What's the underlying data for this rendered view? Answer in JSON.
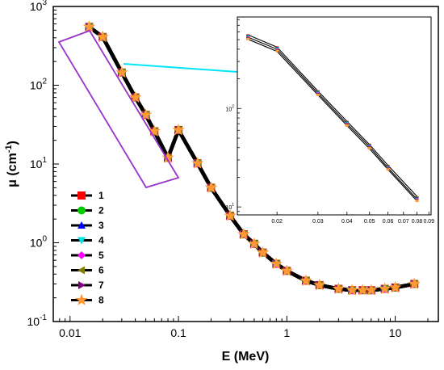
{
  "chart_data": [
    {
      "type": "line",
      "xlabel": "E (MeV)",
      "ylabel_prefix": "μ (cm",
      "ylabel_sup": "-1",
      "ylabel_suffix": ")",
      "x_scale": "log",
      "y_scale": "log",
      "xlim": [
        0.007,
        25
      ],
      "ylim": [
        0.1,
        1000
      ],
      "x_ticks": [
        0.01,
        0.1,
        1,
        10
      ],
      "x_tick_labels": [
        "0.01",
        "0.1",
        "1",
        "10"
      ],
      "y_ticks": [
        0.1,
        1,
        10,
        100,
        1000
      ],
      "y_tick_base": "10",
      "y_tick_exponents": [
        "-1",
        "0",
        "1",
        "2",
        "3"
      ],
      "x": [
        0.015,
        0.02,
        0.03,
        0.04,
        0.05,
        0.06,
        0.08,
        0.1,
        0.15,
        0.2,
        0.3,
        0.4,
        0.5,
        0.6,
        0.8,
        1.0,
        1.5,
        2.0,
        3.0,
        4.0,
        5.0,
        6.0,
        8.0,
        10.0,
        15.0
      ],
      "series": [
        {
          "name": "1",
          "marker": "square",
          "color": "#ff0000",
          "values": [
            550,
            410,
            145,
            70,
            42,
            26,
            12,
            27,
            10.2,
            5.0,
            2.2,
            1.28,
            0.97,
            0.75,
            0.54,
            0.44,
            0.33,
            0.29,
            0.26,
            0.25,
            0.25,
            0.25,
            0.26,
            0.27,
            0.3
          ]
        },
        {
          "name": "2",
          "marker": "circle",
          "color": "#00cc00",
          "values": [
            550,
            410,
            145,
            70,
            42,
            26,
            12,
            27,
            10.2,
            5.0,
            2.2,
            1.28,
            0.97,
            0.75,
            0.54,
            0.44,
            0.33,
            0.29,
            0.26,
            0.25,
            0.25,
            0.25,
            0.26,
            0.27,
            0.3
          ]
        },
        {
          "name": "3",
          "marker": "triangle-up",
          "color": "#0000ff",
          "values": [
            550,
            410,
            145,
            70,
            42,
            26,
            12,
            27,
            10.2,
            5.0,
            2.2,
            1.28,
            0.97,
            0.75,
            0.54,
            0.44,
            0.33,
            0.29,
            0.26,
            0.25,
            0.25,
            0.25,
            0.26,
            0.27,
            0.3
          ]
        },
        {
          "name": "4",
          "marker": "triangle-down",
          "color": "#00e0e0",
          "values": [
            550,
            410,
            145,
            70,
            42,
            26,
            12,
            27,
            10.2,
            5.0,
            2.2,
            1.28,
            0.97,
            0.75,
            0.54,
            0.44,
            0.33,
            0.29,
            0.26,
            0.25,
            0.25,
            0.25,
            0.26,
            0.27,
            0.3
          ]
        },
        {
          "name": "5",
          "marker": "diamond",
          "color": "#ff00ff",
          "values": [
            550,
            410,
            145,
            70,
            42,
            26,
            12,
            27,
            10.2,
            5.0,
            2.2,
            1.28,
            0.97,
            0.75,
            0.54,
            0.44,
            0.33,
            0.29,
            0.26,
            0.25,
            0.25,
            0.25,
            0.26,
            0.27,
            0.3
          ]
        },
        {
          "name": "6",
          "marker": "triangle-left",
          "color": "#808000",
          "values": [
            550,
            410,
            145,
            70,
            42,
            26,
            12,
            27,
            10.2,
            5.0,
            2.2,
            1.28,
            0.97,
            0.75,
            0.54,
            0.44,
            0.33,
            0.29,
            0.26,
            0.25,
            0.25,
            0.25,
            0.26,
            0.27,
            0.3
          ]
        },
        {
          "name": "7",
          "marker": "triangle-right",
          "color": "#800080",
          "values": [
            550,
            410,
            145,
            70,
            42,
            26,
            12,
            27,
            10.2,
            5.0,
            2.2,
            1.28,
            0.97,
            0.75,
            0.54,
            0.44,
            0.33,
            0.29,
            0.26,
            0.25,
            0.25,
            0.25,
            0.26,
            0.27,
            0.3
          ]
        },
        {
          "name": "8",
          "marker": "star",
          "color": "#ff9933",
          "values": [
            550,
            410,
            145,
            70,
            42,
            26,
            12,
            27,
            10.2,
            5.0,
            2.2,
            1.28,
            0.97,
            0.75,
            0.54,
            0.44,
            0.33,
            0.29,
            0.26,
            0.25,
            0.25,
            0.25,
            0.26,
            0.27,
            0.3
          ]
        }
      ],
      "legend_placement": "bottom-left",
      "grid": false,
      "highlight_box_color": "#9933cc",
      "arrow_color": "#00e5ff"
    },
    {
      "type": "line",
      "role": "inset",
      "x_scale": "log",
      "y_scale": "log",
      "xlim": [
        0.0135,
        0.092
      ],
      "ylim": [
        8.3,
        850
      ],
      "x_ticks": [
        0.02,
        0.03,
        0.04,
        0.05,
        0.06,
        0.07,
        0.08,
        0.09
      ],
      "x_tick_labels": [
        "0.02",
        "0.03",
        "0.04",
        "0.05",
        "0.06",
        "0.07",
        "0.08",
        "0.09"
      ],
      "y_ticks": [
        10,
        100
      ],
      "y_tick_base": "10",
      "y_tick_exponents": [
        "1",
        "2"
      ],
      "x": [
        0.015,
        0.02,
        0.03,
        0.04,
        0.05,
        0.06,
        0.08
      ],
      "series": [
        {
          "color": "#000000",
          "values": [
            560,
            420,
            150,
            74,
            43,
            26.5,
            12.8
          ]
        },
        {
          "color": "#000000",
          "values": [
            530,
            400,
            143,
            70,
            41,
            25,
            12.0
          ]
        },
        {
          "color": "#000000",
          "values": [
            505,
            380,
            137,
            67,
            39,
            24,
            11.5
          ]
        }
      ],
      "marker_colors": [
        "#ff0000",
        "#00cc00",
        "#0000ff",
        "#00e0e0",
        "#ff00ff",
        "#808000",
        "#800080",
        "#ff9933"
      ]
    }
  ]
}
